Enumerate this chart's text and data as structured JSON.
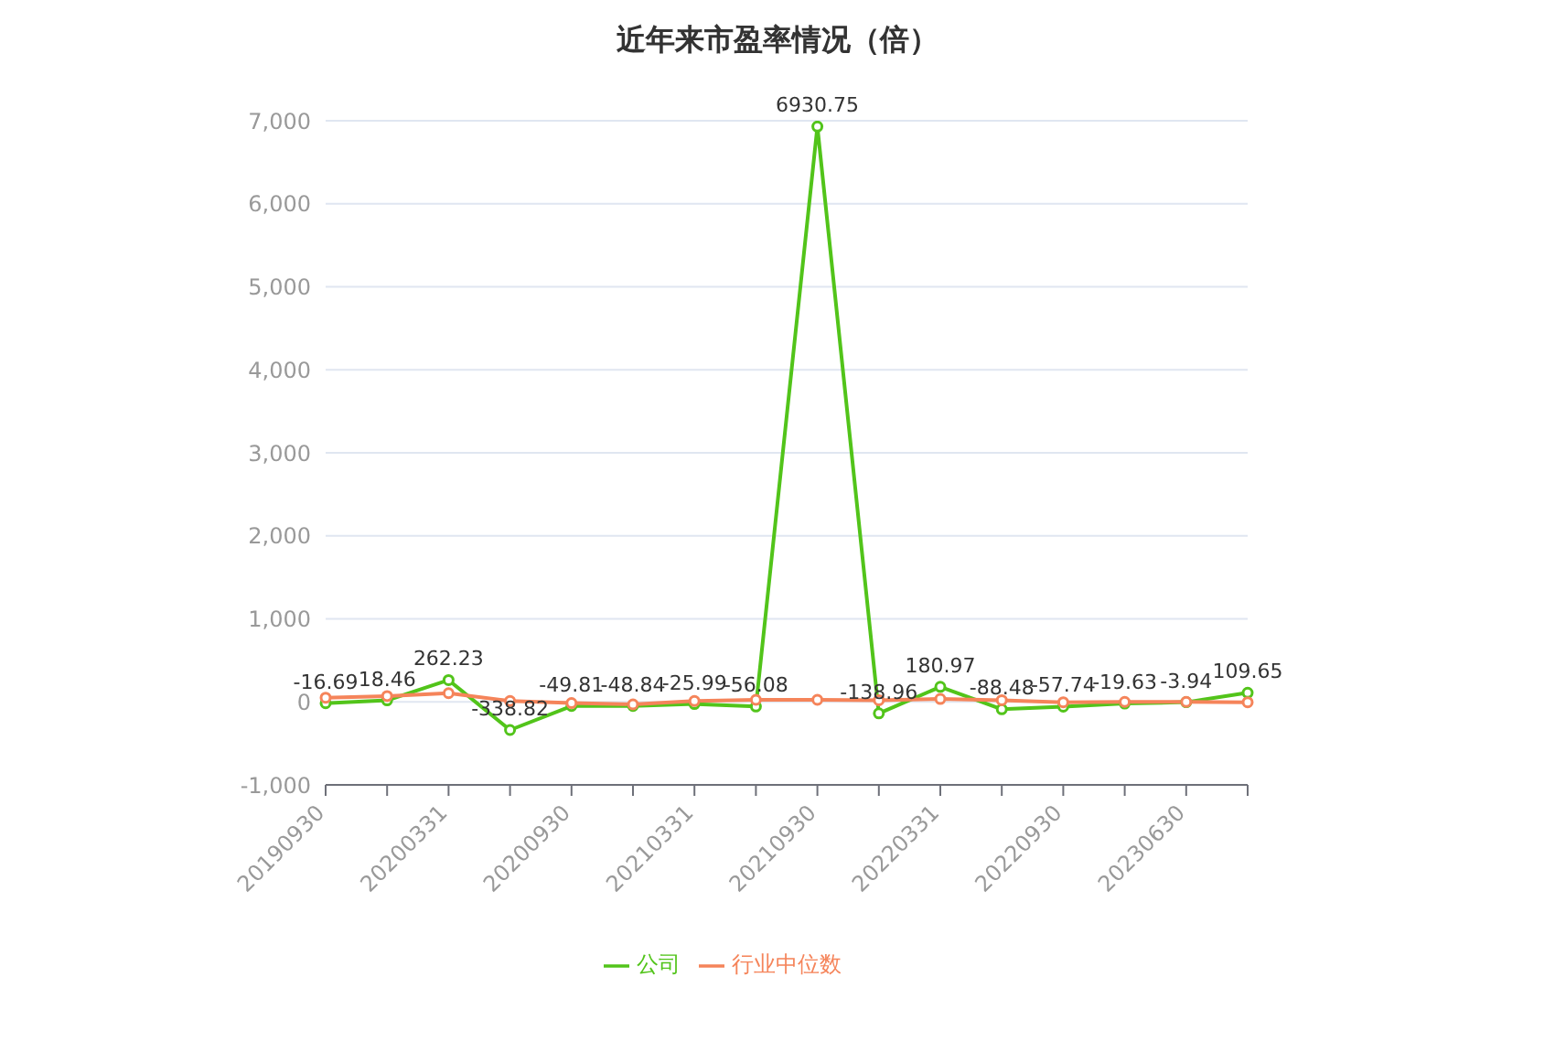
{
  "chart_data": {
    "type": "line",
    "title": "近年来市盈率情况（倍）",
    "categories": [
      "20190930",
      null,
      "20200331",
      null,
      "20200930",
      null,
      "20210331",
      null,
      "20210930",
      null,
      "20220331",
      null,
      "20220930",
      null,
      "20230630",
      null
    ],
    "series": [
      {
        "name": "公司",
        "color": "#52c41a",
        "values": [
          -16.69,
          18.46,
          262.23,
          -338.82,
          -49.81,
          -48.84,
          -25.99,
          -56.08,
          6930.75,
          -138.96,
          180.97,
          -88.48,
          -57.74,
          -19.63,
          -3.94,
          109.65
        ],
        "value_labels": [
          "-16.69",
          "18.46",
          "262.23",
          "-338.82",
          "-49.81",
          "-48.84",
          "-25.99",
          "-56.08",
          "6930.75",
          "-138.96",
          "180.97",
          "-88.48",
          "-57.74",
          "-19.63",
          "-3.94",
          "109.65"
        ]
      },
      {
        "name": "行业中位数",
        "color": "#f5845a",
        "values": [
          50,
          70,
          105,
          10,
          -15,
          -30,
          10,
          25,
          25,
          20,
          35,
          20,
          -5,
          0,
          0,
          -5
        ]
      }
    ],
    "ylim": [
      -1000,
      7000
    ],
    "yticks": [
      {
        "value": -1000,
        "label": "-1,000"
      },
      0,
      {
        "value": 1000,
        "label": "1,000"
      },
      {
        "value": 2000,
        "label": "2,000"
      },
      {
        "value": 3000,
        "label": "3,000"
      },
      {
        "value": 4000,
        "label": "4,000"
      },
      {
        "value": 5000,
        "label": "5,000"
      },
      {
        "value": 6000,
        "label": "6,000"
      },
      {
        "value": 7000,
        "label": "7,000"
      }
    ],
    "grid": "y",
    "legend": "bottom",
    "marker": "circle",
    "line_style": "solid"
  }
}
